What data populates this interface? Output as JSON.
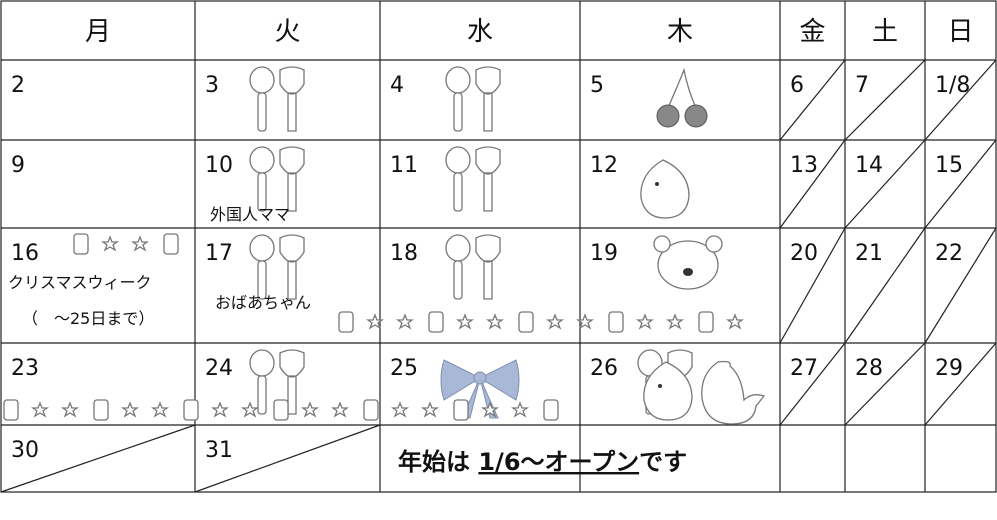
{
  "header": [
    "月",
    "火",
    "水",
    "木",
    "金",
    "土",
    "日"
  ],
  "weeks": [
    [
      "2",
      "3",
      "4",
      "5",
      "6",
      "7",
      "1/8"
    ],
    [
      "9",
      "10",
      "11",
      "12",
      "13",
      "14",
      "15"
    ],
    [
      "16",
      "17",
      "18",
      "19",
      "20",
      "21",
      "22"
    ],
    [
      "23",
      "24",
      "25",
      "26",
      "27",
      "28",
      "29"
    ],
    [
      "30",
      "31"
    ]
  ],
  "notes": [
    "外国人ママ",
    "クリスマスウィーク",
    "（　～25日まで）",
    "おばあちゃん"
  ],
  "announcement": {
    "lead": "年始は ",
    "date": "1/6～オープン",
    "tail": "です"
  }
}
